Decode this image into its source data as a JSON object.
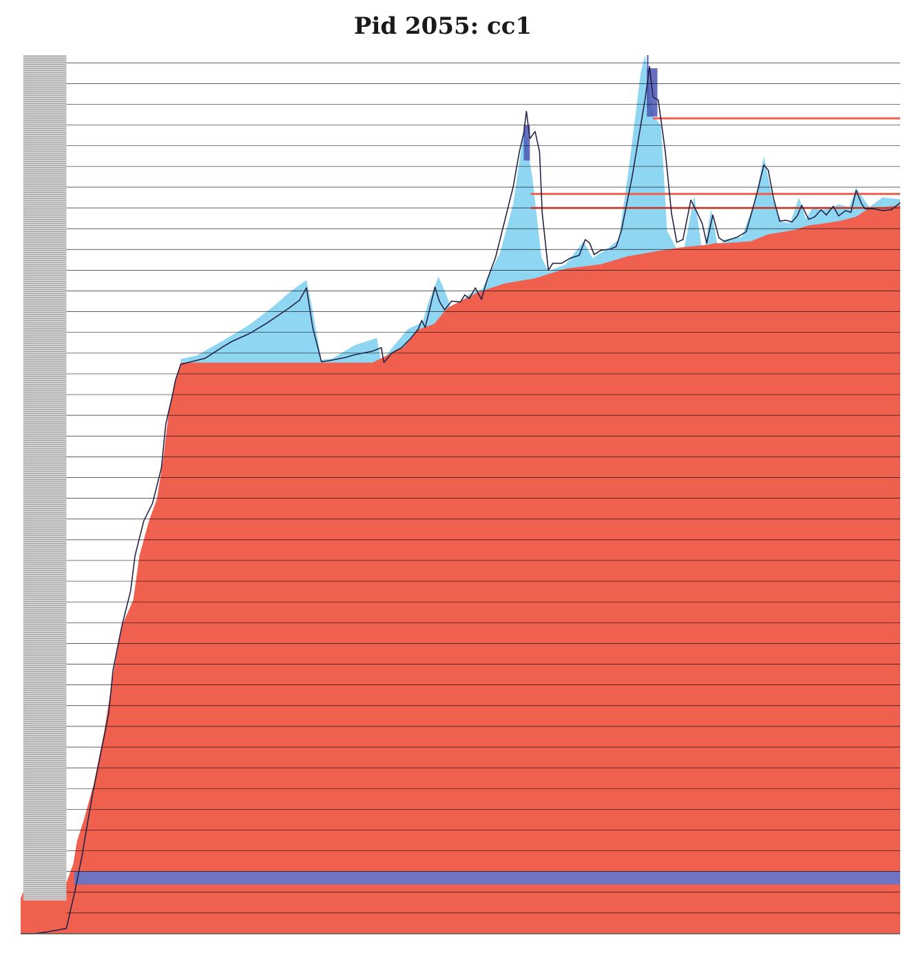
{
  "chart_data": {
    "type": "area",
    "title": "Pid 2055: cc1",
    "xlabel": "",
    "ylabel": "",
    "xlim": [
      0,
      100
    ],
    "ylim": [
      0,
      100
    ],
    "grid": true,
    "colors": {
      "allocated": "#f0604f",
      "freed": "#8fd6f2",
      "peak_band": "#6e73c2",
      "spikes": "#4b56b4",
      "gridline": "#000000",
      "live_line": "#222244"
    },
    "series": [
      {
        "role": "retained",
        "values": [
          [
            0,
            4
          ],
          [
            0.2,
            4.6
          ],
          [
            0.5,
            5
          ],
          [
            5.2,
            5.8
          ],
          [
            6,
            8
          ],
          [
            6.4,
            10.5
          ],
          [
            7.2,
            13
          ],
          [
            8.3,
            17
          ],
          [
            9.5,
            23
          ],
          [
            10.6,
            30
          ],
          [
            11.5,
            35
          ],
          [
            12.8,
            38
          ],
          [
            13.5,
            43
          ],
          [
            14.6,
            47
          ],
          [
            15.5,
            49.5
          ],
          [
            16.2,
            54
          ],
          [
            16.8,
            59
          ],
          [
            17.4,
            62
          ],
          [
            18.2,
            65
          ],
          [
            26,
            65
          ],
          [
            40,
            65
          ],
          [
            43.6,
            66.8
          ],
          [
            45,
            68.7
          ],
          [
            47,
            69.4
          ],
          [
            48.5,
            71.2
          ],
          [
            50,
            72
          ],
          [
            52,
            73
          ],
          [
            55,
            74
          ],
          [
            58.5,
            74.6
          ],
          [
            62,
            75.7
          ],
          [
            66,
            76.2
          ],
          [
            69,
            77.1
          ],
          [
            72.5,
            77.7
          ],
          [
            75,
            78.1
          ],
          [
            78,
            78.4
          ],
          [
            79,
            78.6
          ],
          [
            80,
            78.6
          ],
          [
            83,
            78.8
          ],
          [
            85,
            79.6
          ],
          [
            88,
            80.1
          ],
          [
            89.5,
            80.6
          ],
          [
            91,
            80.8
          ],
          [
            93,
            81.1
          ],
          [
            95,
            81.6
          ],
          [
            96.5,
            82.6
          ],
          [
            98,
            82.7
          ],
          [
            100,
            82.9
          ]
        ]
      },
      {
        "role": "peak_envelope",
        "values": [
          [
            18.2,
            65.4
          ],
          [
            20,
            65.8
          ],
          [
            23,
            67.5
          ],
          [
            26,
            69.3
          ],
          [
            28.5,
            71.2
          ],
          [
            30.8,
            73.2
          ],
          [
            32.5,
            74.4
          ],
          [
            33,
            72
          ],
          [
            34.2,
            65.3
          ],
          [
            35.5,
            65.5
          ],
          [
            38,
            67
          ],
          [
            40.5,
            67.8
          ],
          [
            41,
            65
          ],
          [
            42,
            66.4
          ],
          [
            44,
            68.8
          ],
          [
            45.7,
            69.6
          ],
          [
            46.3,
            71.7
          ],
          [
            47.5,
            74.8
          ],
          [
            48.3,
            73
          ],
          [
            49,
            71
          ],
          [
            51,
            72.8
          ],
          [
            52.5,
            73.4
          ],
          [
            54.5,
            77.5
          ],
          [
            56,
            83
          ],
          [
            57.3,
            92
          ],
          [
            57.7,
            89
          ],
          [
            58.2,
            86
          ],
          [
            59.2,
            77
          ],
          [
            60,
            75.4
          ],
          [
            62,
            76.2
          ],
          [
            64,
            78.8
          ],
          [
            65,
            76.9
          ],
          [
            66.5,
            77.8
          ],
          [
            68,
            79
          ],
          [
            69.2,
            87.5
          ],
          [
            70.5,
            98
          ],
          [
            71,
            100
          ],
          [
            72,
            93
          ],
          [
            72.8,
            92
          ],
          [
            73.5,
            80
          ],
          [
            75.2,
            76.8
          ],
          [
            76.6,
            84
          ],
          [
            77.6,
            76.8
          ],
          [
            78.5,
            82.5
          ],
          [
            79.3,
            78
          ],
          [
            80,
            79
          ],
          [
            82,
            79.3
          ],
          [
            83.5,
            83.4
          ],
          [
            84.5,
            88.5
          ],
          [
            85.5,
            83.6
          ],
          [
            86.5,
            81
          ],
          [
            87.5,
            80.9
          ],
          [
            88.5,
            83.8
          ],
          [
            89.3,
            81.3
          ],
          [
            90,
            82.6
          ],
          [
            91,
            82.4
          ],
          [
            92,
            82.5
          ],
          [
            93,
            83
          ],
          [
            94.2,
            82.7
          ],
          [
            95,
            84.9
          ],
          [
            96.5,
            82.7
          ],
          [
            98,
            83.8
          ],
          [
            100,
            83.6
          ]
        ]
      },
      {
        "role": "live_heap",
        "values": [
          [
            0,
            0
          ],
          [
            1.5,
            0
          ],
          [
            3,
            0.2
          ],
          [
            5.2,
            0.6
          ],
          [
            6.2,
            5
          ],
          [
            7,
            9
          ],
          [
            7.5,
            12
          ],
          [
            8.2,
            16
          ],
          [
            9,
            20
          ],
          [
            10,
            25
          ],
          [
            10.5,
            30
          ],
          [
            11.5,
            35
          ],
          [
            12.5,
            39
          ],
          [
            13,
            43
          ],
          [
            14,
            47
          ],
          [
            15,
            49
          ],
          [
            16,
            53
          ],
          [
            16.5,
            58
          ],
          [
            17.2,
            61
          ],
          [
            17.6,
            63
          ],
          [
            18.2,
            64.8
          ],
          [
            19,
            65
          ],
          [
            21,
            65.5
          ],
          [
            23,
            66.8
          ],
          [
            24,
            67.4
          ],
          [
            26,
            68.3
          ],
          [
            28,
            69.5
          ],
          [
            30.5,
            71.2
          ],
          [
            31.7,
            72.1
          ],
          [
            32.5,
            73.5
          ],
          [
            33.2,
            69
          ],
          [
            34.2,
            65.1
          ],
          [
            35,
            65.2
          ],
          [
            37,
            65.6
          ],
          [
            38,
            65.9
          ],
          [
            40,
            66.3
          ],
          [
            41,
            66.7
          ],
          [
            41.3,
            65
          ],
          [
            42.2,
            66.1
          ],
          [
            43.3,
            66.7
          ],
          [
            44.3,
            67.7
          ],
          [
            45.2,
            68.8
          ],
          [
            45.6,
            69.8
          ],
          [
            46,
            69
          ],
          [
            46.6,
            71.5
          ],
          [
            47.1,
            73.6
          ],
          [
            47.6,
            72
          ],
          [
            48.2,
            71
          ],
          [
            49,
            72
          ],
          [
            50,
            71.9
          ],
          [
            50.5,
            72.7
          ],
          [
            51,
            72.3
          ],
          [
            51.7,
            73.5
          ],
          [
            52.4,
            72.2
          ],
          [
            53,
            74.3
          ],
          [
            54,
            77
          ],
          [
            55,
            81
          ],
          [
            56,
            85
          ],
          [
            56.7,
            89
          ],
          [
            57.2,
            91.1
          ],
          [
            57.5,
            93.6
          ],
          [
            57.9,
            90.5
          ],
          [
            58.5,
            91.3
          ],
          [
            59,
            89
          ],
          [
            59.3,
            82
          ],
          [
            60,
            75.5
          ],
          [
            60.5,
            76.3
          ],
          [
            61.5,
            76.3
          ],
          [
            62.5,
            76.9
          ],
          [
            63.5,
            77.2
          ],
          [
            64.2,
            79
          ],
          [
            64.7,
            78.6
          ],
          [
            65.2,
            77.3
          ],
          [
            66,
            77.8
          ],
          [
            67,
            77.9
          ],
          [
            67.7,
            78.2
          ],
          [
            68.3,
            80
          ],
          [
            69.5,
            86
          ],
          [
            70.5,
            92
          ],
          [
            71,
            95
          ],
          [
            71.5,
            98.7
          ],
          [
            71.9,
            95.2
          ],
          [
            72.5,
            94.9
          ],
          [
            73.3,
            89
          ],
          [
            74,
            82
          ],
          [
            74.6,
            78.7
          ],
          [
            75.3,
            79
          ],
          [
            76.2,
            83.5
          ],
          [
            77,
            81.9
          ],
          [
            77.5,
            80.8
          ],
          [
            78,
            78.6
          ],
          [
            78.7,
            81.8
          ],
          [
            79.4,
            79.2
          ],
          [
            80,
            78.8
          ],
          [
            81.5,
            79.3
          ],
          [
            82.5,
            79.9
          ],
          [
            83.2,
            82.4
          ],
          [
            83.8,
            84.6
          ],
          [
            84.5,
            87.5
          ],
          [
            85,
            86.9
          ],
          [
            85.6,
            83.7
          ],
          [
            86.3,
            81.1
          ],
          [
            87,
            81.2
          ],
          [
            87.7,
            81
          ],
          [
            88.3,
            81.7
          ],
          [
            88.8,
            82.9
          ],
          [
            89.6,
            81.3
          ],
          [
            90.3,
            81.6
          ],
          [
            91,
            82.4
          ],
          [
            91.6,
            81.8
          ],
          [
            92.4,
            82.8
          ],
          [
            93,
            81.7
          ],
          [
            93.8,
            82.3
          ],
          [
            94.4,
            82.1
          ],
          [
            95,
            84.6
          ],
          [
            95.6,
            83.1
          ],
          [
            96,
            82.5
          ],
          [
            97,
            82.5
          ],
          [
            98,
            82.3
          ],
          [
            99,
            82.4
          ],
          [
            100,
            83.2
          ]
        ]
      }
    ]
  }
}
